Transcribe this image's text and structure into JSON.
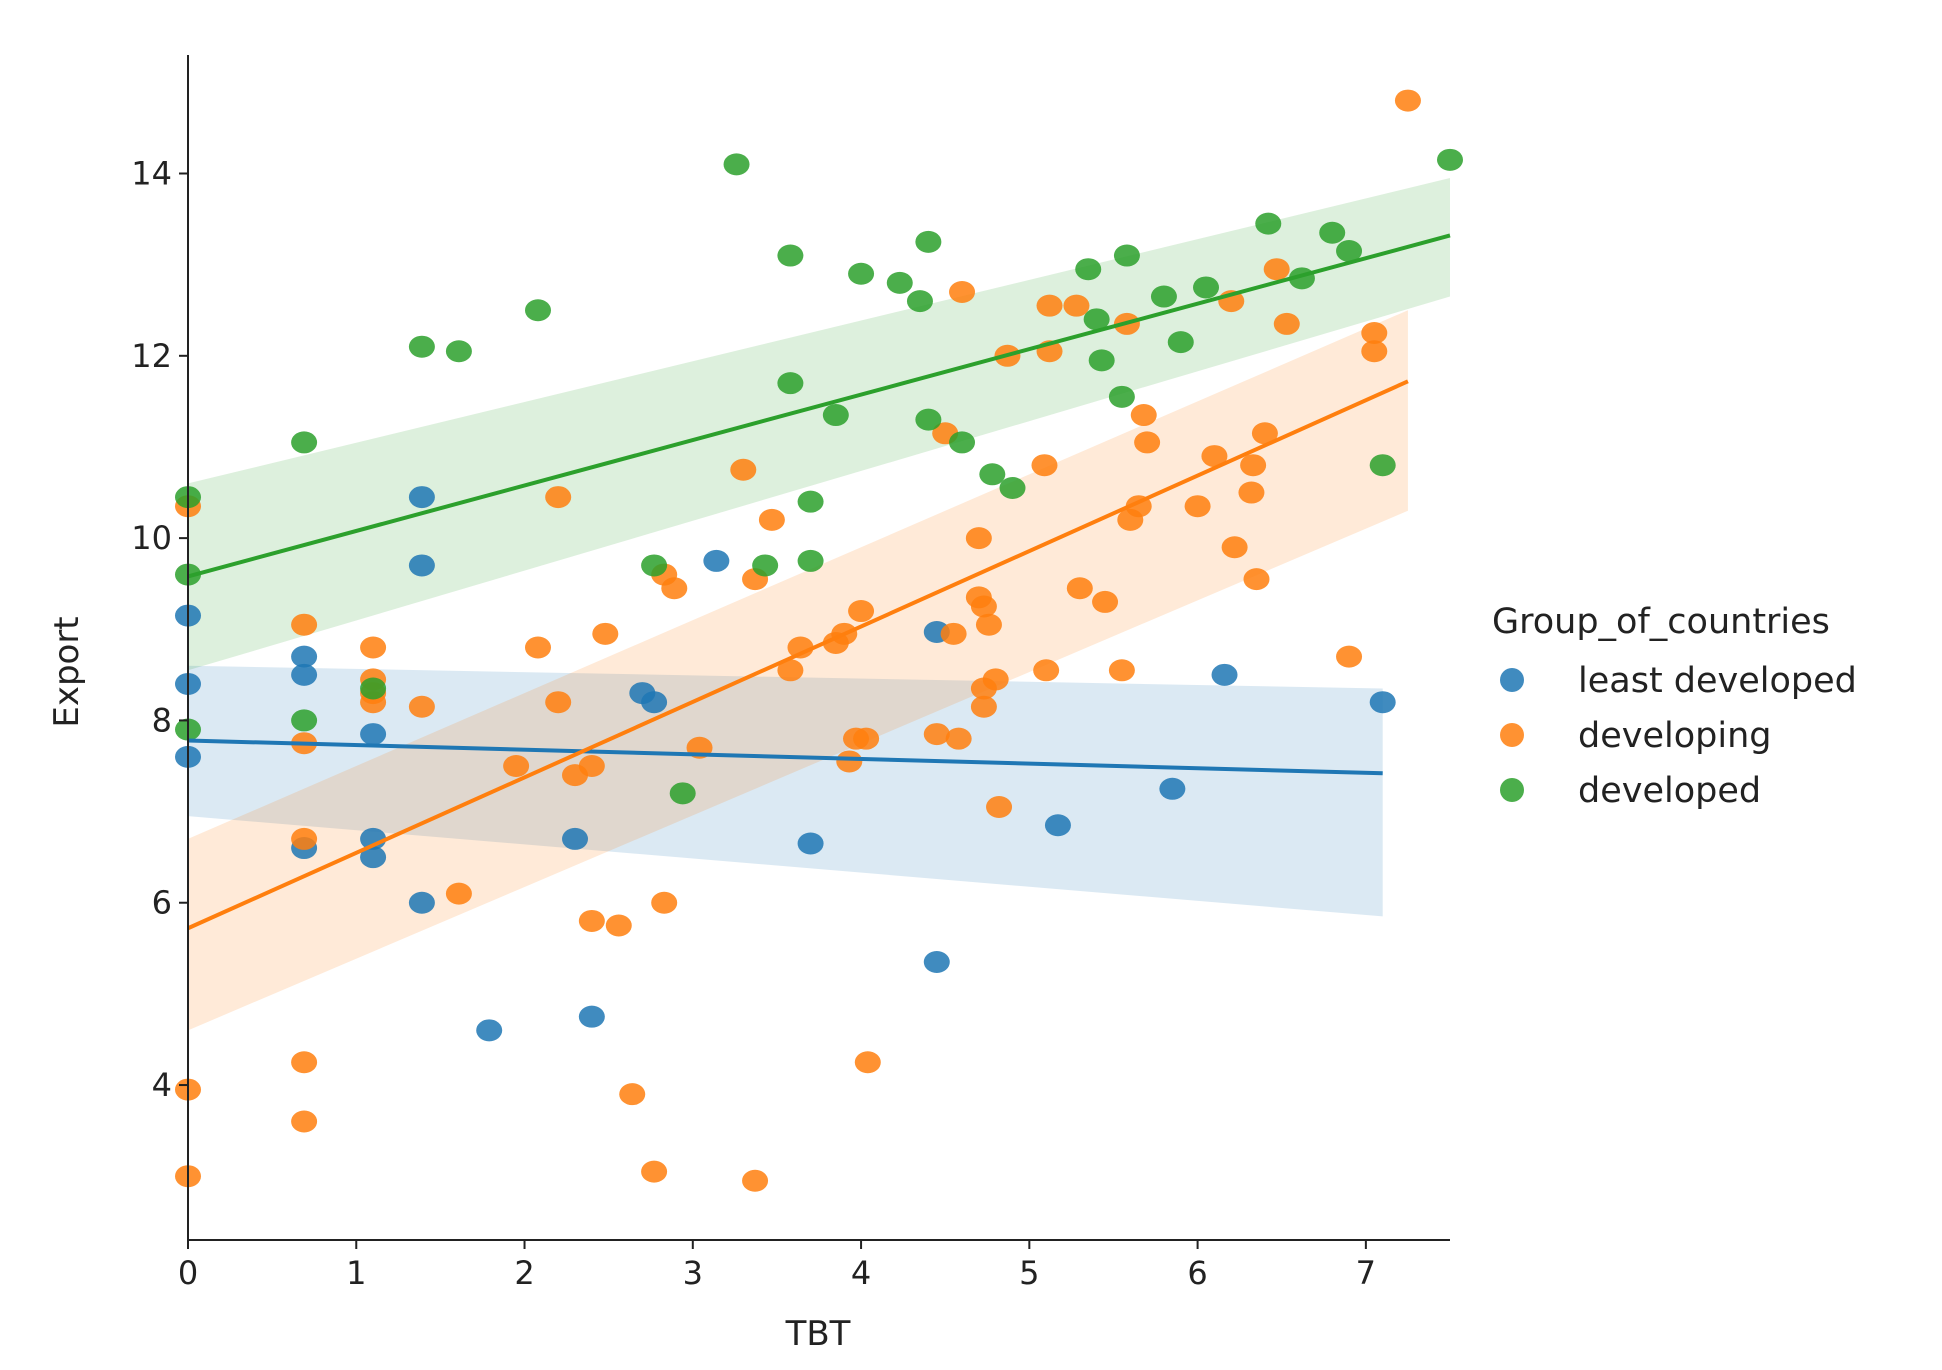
{
  "chart_data": {
    "type": "scatter",
    "title": "",
    "xlabel": "TBT",
    "ylabel": "Export",
    "xlim": [
      0,
      7.5
    ],
    "ylim": [
      2.3,
      15.3
    ],
    "xticks": [
      0,
      1,
      2,
      3,
      4,
      5,
      6,
      7
    ],
    "yticks": [
      4,
      6,
      8,
      10,
      12,
      14
    ],
    "grid": false,
    "legend": {
      "title": "Group_of_countries",
      "placement": "right"
    },
    "series": [
      {
        "name": "least developed",
        "color": "#1f77b4",
        "fit": {
          "x": [
            0,
            7.1
          ],
          "y": [
            7.78,
            7.42
          ],
          "ci_low": [
            6.95,
            5.85
          ],
          "ci_high": [
            8.6,
            8.35
          ]
        },
        "points": [
          [
            0,
            9.15
          ],
          [
            0,
            8.4
          ],
          [
            0,
            7.6
          ],
          [
            0.69,
            8.7
          ],
          [
            0.69,
            8.5
          ],
          [
            0.69,
            6.6
          ],
          [
            1.1,
            7.85
          ],
          [
            1.1,
            6.7
          ],
          [
            1.1,
            6.5
          ],
          [
            1.39,
            10.45
          ],
          [
            1.39,
            9.7
          ],
          [
            1.39,
            6.0
          ],
          [
            1.79,
            4.6
          ],
          [
            2.3,
            6.7
          ],
          [
            2.4,
            4.75
          ],
          [
            2.7,
            8.3
          ],
          [
            2.77,
            8.2
          ],
          [
            3.14,
            9.75
          ],
          [
            3.7,
            6.65
          ],
          [
            4.45,
            8.97
          ],
          [
            4.45,
            5.35
          ],
          [
            5.17,
            6.85
          ],
          [
            5.85,
            7.25
          ],
          [
            6.16,
            8.5
          ],
          [
            7.1,
            8.2
          ]
        ]
      },
      {
        "name": "developing",
        "color": "#ff7f0e",
        "fit": {
          "x": [
            0,
            7.25
          ],
          "y": [
            5.72,
            11.72
          ],
          "ci_low": [
            4.6,
            10.3
          ],
          "ci_high": [
            6.7,
            12.5
          ]
        },
        "points": [
          [
            0,
            10.35
          ],
          [
            0,
            3.95
          ],
          [
            0,
            3.0
          ],
          [
            0.69,
            9.05
          ],
          [
            0.69,
            7.75
          ],
          [
            0.69,
            6.7
          ],
          [
            0.69,
            4.25
          ],
          [
            0.69,
            3.6
          ],
          [
            1.1,
            8.8
          ],
          [
            1.1,
            8.45
          ],
          [
            1.1,
            8.3
          ],
          [
            1.1,
            8.2
          ],
          [
            1.39,
            8.15
          ],
          [
            1.61,
            6.1
          ],
          [
            1.95,
            7.5
          ],
          [
            2.08,
            8.8
          ],
          [
            2.2,
            10.45
          ],
          [
            2.2,
            8.2
          ],
          [
            2.3,
            7.4
          ],
          [
            2.4,
            7.5
          ],
          [
            2.4,
            5.8
          ],
          [
            2.48,
            8.95
          ],
          [
            2.56,
            5.75
          ],
          [
            2.64,
            3.9
          ],
          [
            2.77,
            3.05
          ],
          [
            2.83,
            9.6
          ],
          [
            2.83,
            6.0
          ],
          [
            2.89,
            9.45
          ],
          [
            3.04,
            7.7
          ],
          [
            3.3,
            10.75
          ],
          [
            3.37,
            9.55
          ],
          [
            3.37,
            2.95
          ],
          [
            3.47,
            10.2
          ],
          [
            3.58,
            8.55
          ],
          [
            3.64,
            8.8
          ],
          [
            3.85,
            8.85
          ],
          [
            3.9,
            8.95
          ],
          [
            3.93,
            7.55
          ],
          [
            3.97,
            7.8
          ],
          [
            4.0,
            9.2
          ],
          [
            4.03,
            7.8
          ],
          [
            4.04,
            4.25
          ],
          [
            4.45,
            7.85
          ],
          [
            4.5,
            11.15
          ],
          [
            4.55,
            8.95
          ],
          [
            4.58,
            7.8
          ],
          [
            4.6,
            12.7
          ],
          [
            4.7,
            10.0
          ],
          [
            4.7,
            9.35
          ],
          [
            4.73,
            9.25
          ],
          [
            4.73,
            8.35
          ],
          [
            4.73,
            8.15
          ],
          [
            4.76,
            9.05
          ],
          [
            4.8,
            8.45
          ],
          [
            4.82,
            7.05
          ],
          [
            4.87,
            12.0
          ],
          [
            5.09,
            10.8
          ],
          [
            5.1,
            8.55
          ],
          [
            5.12,
            12.55
          ],
          [
            5.12,
            12.05
          ],
          [
            5.28,
            12.55
          ],
          [
            5.3,
            9.45
          ],
          [
            5.45,
            9.3
          ],
          [
            5.55,
            8.55
          ],
          [
            5.58,
            12.35
          ],
          [
            5.6,
            10.2
          ],
          [
            5.65,
            10.35
          ],
          [
            5.68,
            11.35
          ],
          [
            5.7,
            11.05
          ],
          [
            6.0,
            10.35
          ],
          [
            6.1,
            10.9
          ],
          [
            6.2,
            12.6
          ],
          [
            6.22,
            9.9
          ],
          [
            6.32,
            10.5
          ],
          [
            6.33,
            10.8
          ],
          [
            6.35,
            9.55
          ],
          [
            6.4,
            11.15
          ],
          [
            6.47,
            12.95
          ],
          [
            6.53,
            12.35
          ],
          [
            6.9,
            8.7
          ],
          [
            7.05,
            12.25
          ],
          [
            7.05,
            12.05
          ],
          [
            7.25,
            14.8
          ]
        ]
      },
      {
        "name": "developed",
        "color": "#2ca02c",
        "fit": {
          "x": [
            0,
            7.5
          ],
          "y": [
            9.58,
            13.32
          ],
          "ci_low": [
            8.55,
            12.65
          ],
          "ci_high": [
            10.6,
            13.95
          ]
        },
        "points": [
          [
            0,
            10.45
          ],
          [
            0,
            9.6
          ],
          [
            0,
            7.9
          ],
          [
            0.69,
            11.05
          ],
          [
            0.69,
            8.0
          ],
          [
            1.1,
            8.35
          ],
          [
            1.39,
            12.1
          ],
          [
            1.61,
            12.05
          ],
          [
            2.08,
            12.5
          ],
          [
            2.77,
            9.7
          ],
          [
            2.94,
            7.2
          ],
          [
            3.26,
            14.1
          ],
          [
            3.43,
            9.7
          ],
          [
            3.58,
            13.1
          ],
          [
            3.58,
            11.7
          ],
          [
            3.7,
            10.4
          ],
          [
            3.7,
            9.75
          ],
          [
            3.85,
            11.35
          ],
          [
            4.0,
            12.9
          ],
          [
            4.23,
            12.8
          ],
          [
            4.35,
            12.6
          ],
          [
            4.4,
            13.25
          ],
          [
            4.4,
            11.3
          ],
          [
            4.6,
            11.05
          ],
          [
            4.78,
            10.7
          ],
          [
            4.9,
            10.55
          ],
          [
            5.35,
            12.95
          ],
          [
            5.4,
            12.4
          ],
          [
            5.43,
            11.95
          ],
          [
            5.55,
            11.55
          ],
          [
            5.58,
            13.1
          ],
          [
            5.8,
            12.65
          ],
          [
            5.9,
            12.15
          ],
          [
            6.05,
            12.75
          ],
          [
            6.42,
            13.45
          ],
          [
            6.62,
            12.85
          ],
          [
            6.8,
            13.35
          ],
          [
            6.9,
            13.15
          ],
          [
            7.1,
            10.8
          ],
          [
            7.5,
            14.15
          ]
        ]
      }
    ]
  }
}
